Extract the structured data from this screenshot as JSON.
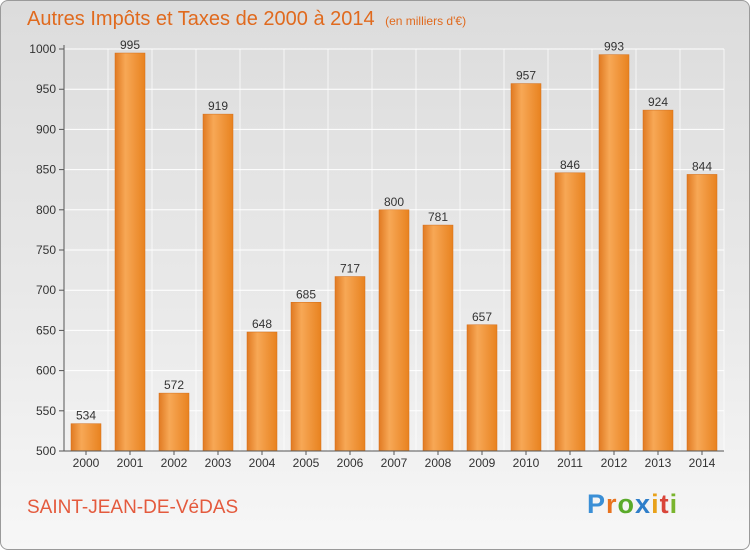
{
  "title": "Autres Impôts et Taxes de 2000 à 2014",
  "unit_note": "(en milliers d'€)",
  "commune": "SAINT-JEAN-DE-VéDAS",
  "brand": {
    "letters": [
      "P",
      "r",
      "o",
      "x",
      "i",
      "t",
      "i"
    ],
    "colors": [
      "#3a8fd6",
      "#e8731f",
      "#5aaa2a",
      "#2e7ec9",
      "#e8a21b",
      "#d9453a",
      "#7ab52e"
    ]
  },
  "colors": {
    "bar": "#f28c2b",
    "bar_light": "#f7a856",
    "bar_dark": "#d9721b",
    "title": "#e06a1e",
    "grid": "#ffffff"
  },
  "chart_data": {
    "type": "bar",
    "categories": [
      "2000",
      "2001",
      "2002",
      "2003",
      "2004",
      "2005",
      "2006",
      "2007",
      "2008",
      "2009",
      "2010",
      "2011",
      "2012",
      "2013",
      "2014"
    ],
    "values": [
      534,
      995,
      572,
      919,
      648,
      685,
      717,
      800,
      781,
      657,
      957,
      846,
      993,
      924,
      844
    ],
    "ylim": [
      500,
      1000
    ],
    "yticks": [
      500,
      550,
      600,
      650,
      700,
      750,
      800,
      850,
      900,
      950,
      1000
    ],
    "grid": true,
    "title": "Autres Impôts et Taxes de 2000 à 2014",
    "xlabel": "",
    "ylabel": ""
  }
}
